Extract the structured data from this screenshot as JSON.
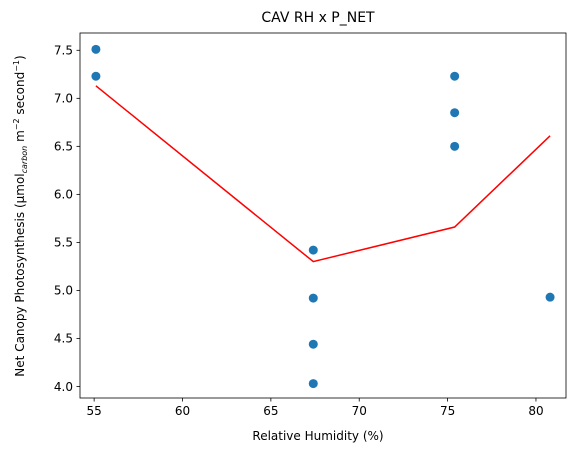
{
  "chart_data": {
    "type": "scatter",
    "title": "CAV RH x P_NET",
    "xlabel": "Relative Humidity (%)",
    "ylabel_parts": {
      "main": "Net Canopy Photosynthesis (μmol",
      "sub": "carbon",
      "mid": " m",
      "sup1": "−2",
      "mid2": " second",
      "sup2": "−1",
      "end": ")"
    },
    "xlim": [
      54.2,
      81.7
    ],
    "ylim": [
      3.88,
      7.68
    ],
    "xticks": [
      55,
      60,
      65,
      70,
      75,
      80
    ],
    "xtick_labels": [
      "55",
      "60",
      "65",
      "70",
      "75",
      "80"
    ],
    "yticks": [
      4.0,
      4.5,
      5.0,
      5.5,
      6.0,
      6.5,
      7.0,
      7.5
    ],
    "ytick_labels": [
      "4.0",
      "4.5",
      "5.0",
      "5.5",
      "6.0",
      "6.5",
      "7.0",
      "7.5"
    ],
    "scatter": {
      "color": "#1f77b4",
      "points": [
        {
          "x": 55.1,
          "y": 7.51
        },
        {
          "x": 55.1,
          "y": 7.23
        },
        {
          "x": 67.4,
          "y": 5.42
        },
        {
          "x": 67.4,
          "y": 4.92
        },
        {
          "x": 67.4,
          "y": 4.44
        },
        {
          "x": 67.4,
          "y": 4.03
        },
        {
          "x": 75.4,
          "y": 7.23
        },
        {
          "x": 75.4,
          "y": 6.85
        },
        {
          "x": 75.4,
          "y": 6.5
        },
        {
          "x": 80.8,
          "y": 4.93
        }
      ]
    },
    "line": {
      "color": "#ff0000",
      "points": [
        {
          "x": 55.1,
          "y": 7.13
        },
        {
          "x": 67.4,
          "y": 5.3
        },
        {
          "x": 75.4,
          "y": 5.66
        },
        {
          "x": 80.8,
          "y": 6.61
        }
      ]
    },
    "grid": false,
    "legend": "none"
  }
}
